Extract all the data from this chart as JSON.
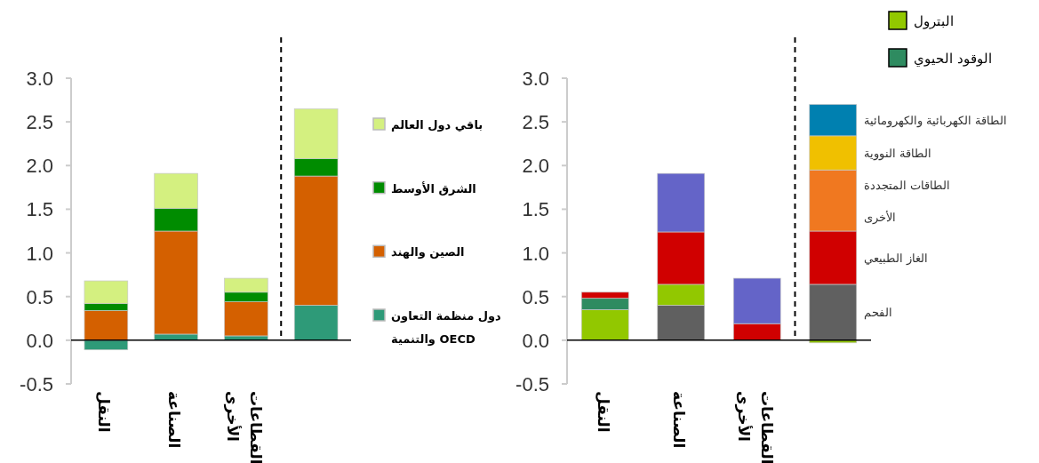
{
  "chart_data": [
    {
      "type": "bar",
      "stacked": true,
      "categories": [
        "النقل",
        "الصناعة",
        "القطاعات\nالأخرى",
        null
      ],
      "ylim": [
        -0.5,
        3.0
      ],
      "yticks": [
        {
          "value": -0.5,
          "label": "-0.5"
        },
        {
          "value": 0,
          "label": "0.0"
        },
        {
          "value": 0.5,
          "label": "0.5"
        },
        {
          "value": 1,
          "label": "1.0"
        },
        {
          "value": 1.5,
          "label": "1.5"
        },
        {
          "value": 2,
          "label": "2.0"
        },
        {
          "value": 2.5,
          "label": "2.5"
        },
        {
          "value": 3,
          "label": "3.0"
        }
      ],
      "legend": "right",
      "series": [
        {
          "name": "دول منظمة التعاون\nوالتنمية OECD",
          "color": "#2e9a78",
          "values": [
            -0.11,
            0.07,
            0.05,
            0.4
          ]
        },
        {
          "name": "الصين والهند",
          "color": "#d46000",
          "values": [
            0.34,
            1.18,
            0.39,
            1.48
          ]
        },
        {
          "name": "الشرق الأوسط",
          "color": "#008c00",
          "values": [
            0.08,
            0.26,
            0.11,
            0.2
          ]
        },
        {
          "name": "باقي دول العالم",
          "color": "#d4f080",
          "values": [
            0.26,
            0.4,
            0.16,
            0.57
          ]
        }
      ]
    },
    {
      "type": "bar",
      "stacked": true,
      "categories": [
        "النقل",
        "الصناعة",
        "القطاعات\nالأخرى",
        null
      ],
      "ylim": [
        -0.5,
        3.0
      ],
      "yticks": [
        {
          "value": -0.5,
          "label": "-0.5"
        },
        {
          "value": 0,
          "label": "0.0"
        },
        {
          "value": 0.5,
          "label": "0.5"
        },
        {
          "value": 1,
          "label": "1.0"
        },
        {
          "value": 1.5,
          "label": "1.5"
        },
        {
          "value": 2,
          "label": "2.0"
        },
        {
          "value": 2.5,
          "label": "2.5"
        },
        {
          "value": 3,
          "label": "3.0"
        }
      ],
      "legend": "top right",
      "series": [
        {
          "name": "الفحم",
          "color": "#606060",
          "values": [
            null,
            0.4,
            null,
            0.64
          ]
        },
        {
          "name": "البترول",
          "color": "#92c800",
          "values": [
            0.35,
            0.24,
            null,
            -0.03
          ]
        },
        {
          "name": "الوقود الحيوي",
          "color": "#2e8b60",
          "values": [
            0.13,
            null,
            null,
            null
          ]
        },
        {
          "name": "الغاز الطبيعي",
          "color": "#d00000",
          "values": [
            0.07,
            0.6,
            0.19,
            0.61
          ]
        },
        {
          "color": "#6464c8",
          "values": [
            null,
            0.67,
            0.52,
            null
          ]
        },
        {
          "name": "الطاقات المتجددة\nالأخرى",
          "color": "#f07820",
          "values": [
            null,
            null,
            null,
            0.7
          ]
        },
        {
          "name": "الطاقة النووية",
          "color": "#f0c000",
          "values": [
            null,
            null,
            null,
            0.39
          ]
        },
        {
          "name": "الطاقة الكهربائية والكهرومائية",
          "color": "#0080b0",
          "values": [
            null,
            null,
            null,
            0.36
          ]
        }
      ]
    }
  ]
}
